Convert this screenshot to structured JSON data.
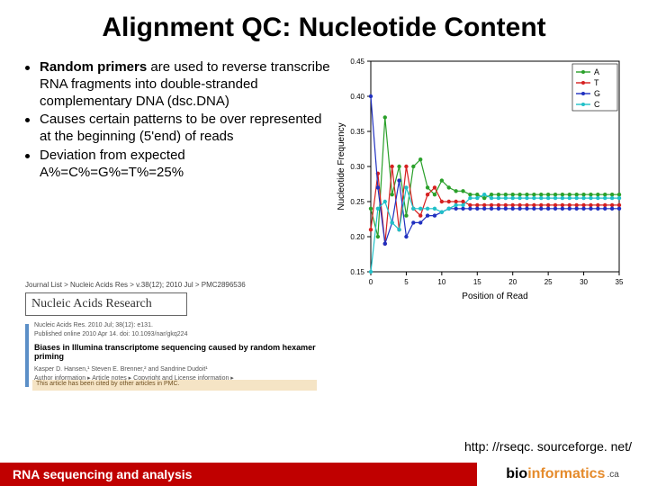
{
  "title": "Alignment QC: Nucleotide Content",
  "bullets": [
    {
      "lead": "Random primers",
      "rest": " are used to reverse transcribe RNA fragments into double-stranded complementary DNA (dsc.DNA)"
    },
    {
      "lead": "",
      "rest": "Causes certain patterns to be over represented at the beginning (5'end) of reads"
    },
    {
      "lead": "",
      "rest": "Deviation from expected A%=C%=G%=T%=25%"
    }
  ],
  "chart": {
    "type": "line",
    "xlabel": "Position of Read",
    "ylabel": "Nucleotide Frequency",
    "label_fontsize": 10,
    "tick_fontsize": 8,
    "xlim": [
      0,
      35
    ],
    "ylim": [
      0.15,
      0.45
    ],
    "xticks": [
      0,
      5,
      10,
      15,
      20,
      25,
      30,
      35
    ],
    "yticks": [
      0.15,
      0.2,
      0.25,
      0.3,
      0.35,
      0.4,
      0.45
    ],
    "background_color": "#ffffff",
    "border_color": "#000000",
    "line_width": 1.2,
    "marker_size": 2.2,
    "legend": {
      "position": "top-right",
      "items": [
        "A",
        "T",
        "G",
        "C"
      ],
      "colors": [
        "#2aa02a",
        "#d62020",
        "#2030c0",
        "#20c0c8"
      ]
    },
    "series": {
      "A": {
        "color": "#2aa02a",
        "y": [
          0.24,
          0.2,
          0.37,
          0.26,
          0.3,
          0.23,
          0.3,
          0.31,
          0.27,
          0.26,
          0.28,
          0.27,
          0.265,
          0.265,
          0.26,
          0.26,
          0.255,
          0.26,
          0.26,
          0.26,
          0.26,
          0.26,
          0.26,
          0.26,
          0.26,
          0.26,
          0.26,
          0.26,
          0.26,
          0.26,
          0.26,
          0.26,
          0.26,
          0.26,
          0.26,
          0.26
        ]
      },
      "T": {
        "color": "#d62020",
        "y": [
          0.21,
          0.29,
          0.19,
          0.3,
          0.21,
          0.3,
          0.24,
          0.23,
          0.26,
          0.27,
          0.25,
          0.25,
          0.25,
          0.25,
          0.245,
          0.245,
          0.245,
          0.245,
          0.245,
          0.245,
          0.245,
          0.245,
          0.245,
          0.245,
          0.245,
          0.245,
          0.245,
          0.245,
          0.245,
          0.245,
          0.245,
          0.245,
          0.245,
          0.245,
          0.245,
          0.245
        ]
      },
      "G": {
        "color": "#2030c0",
        "y": [
          0.4,
          0.27,
          0.19,
          0.22,
          0.28,
          0.2,
          0.22,
          0.22,
          0.23,
          0.23,
          0.235,
          0.24,
          0.24,
          0.24,
          0.24,
          0.24,
          0.24,
          0.24,
          0.24,
          0.24,
          0.24,
          0.24,
          0.24,
          0.24,
          0.24,
          0.24,
          0.24,
          0.24,
          0.24,
          0.24,
          0.24,
          0.24,
          0.24,
          0.24,
          0.24,
          0.24
        ]
      },
      "C": {
        "color": "#20c0c8",
        "y": [
          0.15,
          0.24,
          0.25,
          0.22,
          0.21,
          0.27,
          0.24,
          0.24,
          0.24,
          0.24,
          0.235,
          0.24,
          0.245,
          0.245,
          0.255,
          0.255,
          0.26,
          0.255,
          0.255,
          0.255,
          0.255,
          0.255,
          0.255,
          0.255,
          0.255,
          0.255,
          0.255,
          0.255,
          0.255,
          0.255,
          0.255,
          0.255,
          0.255,
          0.255,
          0.255,
          0.255
        ]
      }
    }
  },
  "citation": {
    "journal_line": "Journal List > Nucleic Acids Res > v.38(12); 2010 Jul > PMC2896536",
    "nar_label": "Nucleic Acids Research",
    "pub_line1": "Nucleic Acids Res. 2010 Jul; 38(12): e131.",
    "pub_line2": "Published online 2010 Apr 14. doi: 10.1093/nar/gkq224",
    "article_title": "Biases in Illumina transcriptome sequencing caused by random hexamer priming",
    "authors": "Kasper D. Hansen,¹ Steven E. Brenner,² and Sandrine Dudoit¹",
    "info_line": "Author information ▸ Article notes ▸ Copyright and License information ▸",
    "pmc_note": "This article has been cited by other articles in PMC."
  },
  "link": "http: //rseqc. sourceforge. net/",
  "footer": {
    "left": "RNA sequencing and analysis",
    "brand_bio": "bio",
    "brand_info": "informatics",
    "brand_ca": ".ca"
  }
}
